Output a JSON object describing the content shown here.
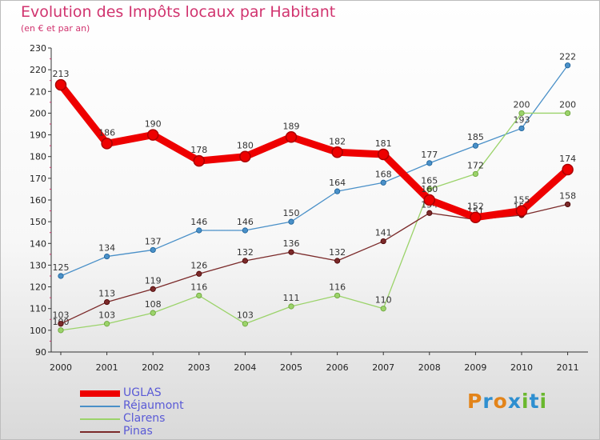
{
  "header": {
    "title": "Evolution des Impôts locaux par Habitant",
    "subtitle": "(en € et par an)"
  },
  "logo": {
    "text": "Proxiti",
    "colors": [
      "#e3841a",
      "#2e8fd0",
      "#e3841a",
      "#2e8fd0",
      "#6ab82e",
      "#2e8fd0",
      "#6ab82e"
    ]
  },
  "chart_data": {
    "type": "line",
    "title": "Evolution des Impôts locaux par Habitant",
    "subtitle": "(en € et par an)",
    "xlabel": "",
    "ylabel": "",
    "categories": [
      "2000",
      "2001",
      "2002",
      "2003",
      "2004",
      "2005",
      "2006",
      "2007",
      "2008",
      "2009",
      "2010",
      "2011"
    ],
    "ylim": [
      90,
      230
    ],
    "yticks": [
      90,
      100,
      110,
      120,
      130,
      140,
      150,
      160,
      170,
      180,
      190,
      200,
      210,
      220,
      230
    ],
    "legend_position": "bottom-left",
    "grid": false,
    "series": [
      {
        "name": "Réjaumont",
        "color": "#4a90c8",
        "values": [
          125,
          134,
          137,
          146,
          146,
          150,
          164,
          168,
          177,
          185,
          193,
          222
        ]
      },
      {
        "name": "Clarens",
        "color": "#9bd36a",
        "values": [
          100,
          103,
          108,
          116,
          103,
          111,
          116,
          110,
          165,
          172,
          200,
          200
        ]
      },
      {
        "name": "Pinas",
        "color": "#7b2a2a",
        "values": [
          103,
          113,
          119,
          126,
          132,
          136,
          132,
          141,
          154,
          151,
          153,
          158
        ]
      },
      {
        "name": "UGLAS",
        "color": "#ee0000",
        "values": [
          213,
          186,
          190,
          178,
          180,
          189,
          182,
          181,
          160,
          152,
          155,
          174
        ]
      }
    ],
    "legend_order": [
      "UGLAS",
      "Réjaumont",
      "Clarens",
      "Pinas"
    ]
  }
}
